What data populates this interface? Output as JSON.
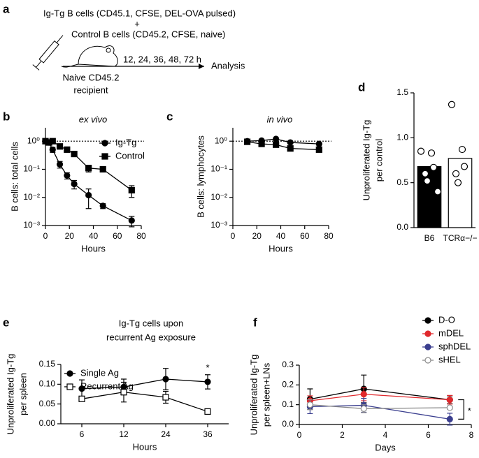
{
  "panel_labels": [
    "a",
    "b",
    "c",
    "d",
    "e",
    "f"
  ],
  "diagram": {
    "line1": "Ig-Tg B cells (CD45.1, CFSE, DEL-OVA pulsed)",
    "plus": "+",
    "line2": "Control B cells (CD45.2, CFSE, naive)",
    "times": "12, 24, 36, 48, 72 h",
    "analysis": "Analysis",
    "recipient1": "Naive CD45.2",
    "recipient2": "recipient"
  },
  "chart_data": [
    {
      "type": "line",
      "title": [
        "ex vivo"
      ],
      "xlabel": "Hours",
      "ylabel": [
        "B cells: total cells"
      ],
      "log_y": true,
      "x": [
        0,
        3,
        6,
        12,
        18,
        24,
        36,
        48,
        72
      ],
      "xlim": [
        0,
        80
      ],
      "xticks": [
        0,
        20,
        40,
        60,
        80
      ],
      "ylim": [
        0.001,
        3
      ],
      "yticks": [
        {
          "value": 1,
          "label": "10⁰"
        },
        {
          "value": 0.1,
          "label": "10⁻¹"
        },
        {
          "value": 0.01,
          "label": "10⁻²"
        },
        {
          "value": 0.001,
          "label": "10⁻³"
        }
      ],
      "reference_line": 1,
      "legend": "upper right",
      "series": [
        {
          "name": "Ig-Tg",
          "color": "#000000",
          "marker": "circle",
          "open": false,
          "values": [
            1.0,
            0.9,
            0.5,
            0.15,
            0.06,
            0.03,
            0.012,
            0.005,
            0.0015
          ],
          "errors": [
            0,
            0,
            0.1,
            0.04,
            0.015,
            0.01,
            0.008,
            0.001,
            0.0006
          ]
        },
        {
          "name": "Control",
          "color": "#000000",
          "marker": "square",
          "open": false,
          "values": [
            1.0,
            0.9,
            1.0,
            0.65,
            0.5,
            0.35,
            0.11,
            0.1,
            0.018
          ],
          "errors": [
            0,
            0,
            0.1,
            0.1,
            0.08,
            0.05,
            0.03,
            0.02,
            0.008
          ]
        }
      ]
    },
    {
      "type": "line",
      "title": [
        "in vivo"
      ],
      "xlabel": "Hours",
      "ylabel": [
        "B cells: lymphocytes"
      ],
      "log_y": true,
      "x": [
        12,
        24,
        36,
        48,
        72
      ],
      "xlim": [
        0,
        80
      ],
      "xticks": [
        0,
        20,
        40,
        60,
        80
      ],
      "ylim": [
        0.001,
        3
      ],
      "yticks": [
        {
          "value": 1,
          "label": "10⁰"
        },
        {
          "value": 0.1,
          "label": "10⁻¹"
        },
        {
          "value": 0.01,
          "label": "10⁻²"
        },
        {
          "value": 0.001,
          "label": "10⁻³"
        }
      ],
      "reference_line": 1,
      "series": [
        {
          "color": "#000000",
          "marker": "circle",
          "open": false,
          "values": [
            1.0,
            1.05,
            1.2,
            0.9,
            0.8
          ]
        },
        {
          "color": "#000000",
          "marker": "square",
          "open": false,
          "values": [
            0.95,
            0.8,
            0.75,
            0.55,
            0.5
          ]
        }
      ]
    },
    {
      "type": "bar",
      "ylabel": [
        "Unproliferated Ig-Tg",
        "per control"
      ],
      "categories": [
        "B6",
        "TCRα−/−"
      ],
      "values": [
        0.68,
        0.77
      ],
      "colors": [
        "#000000",
        "#ffffff"
      ],
      "points": [
        [
          0.85,
          0.83,
          0.67,
          0.6,
          0.52,
          0.4
        ],
        [
          1.37,
          0.87,
          0.68,
          0.6,
          0.5
        ]
      ],
      "ylim": [
        0,
        1.5
      ],
      "yticks": [
        {
          "value": 0,
          "label": "0.0"
        },
        {
          "value": 0.5,
          "label": "0.5"
        },
        {
          "value": 1,
          "label": "1.0"
        },
        1.5
      ]
    },
    {
      "type": "line",
      "title": [
        "Ig-Tg cells upon",
        "recurrent Ag exposure"
      ],
      "xlabel": "Hours",
      "ylabel": [
        "Unproliferated Ig-Tg",
        "per spleen"
      ],
      "categories": [
        "6",
        "12",
        "24",
        "36"
      ],
      "ylim": [
        0,
        0.15
      ],
      "yticks": [
        {
          "value": 0,
          "label": "0.00"
        },
        0.05,
        {
          "value": 0.1,
          "label": "0.10"
        },
        0.15
      ],
      "legend": "upper left",
      "significance": "*",
      "series": [
        {
          "name": "Single Ag",
          "color": "#000000",
          "marker": "circle",
          "open": false,
          "values": [
            0.089,
            0.093,
            0.113,
            0.106
          ],
          "errors": [
            0.022,
            0.02,
            0.027,
            0.018
          ]
        },
        {
          "name": "Recurrent Ag",
          "color": "#000000",
          "marker": "square",
          "open": true,
          "values": [
            0.063,
            0.08,
            0.067,
            0.031
          ],
          "errors": [
            0.005,
            0.025,
            0.015,
            0.004
          ]
        }
      ]
    },
    {
      "type": "line",
      "xlabel": "Days",
      "ylabel": [
        "Unproliferated Ig-Tg",
        "per spleen+LNs"
      ],
      "x": [
        0.5,
        3,
        7
      ],
      "xlim": [
        0,
        8
      ],
      "xticks": [
        0,
        2,
        4,
        6,
        8
      ],
      "ylim": [
        0,
        0.3
      ],
      "yticks": [
        {
          "value": 0,
          "label": "0.0"
        },
        0.1,
        0.2,
        0.3
      ],
      "legend": "upper right",
      "significance": "*",
      "series": [
        {
          "name": "D-O",
          "color": "#000000",
          "marker": "circle",
          "open": false,
          "values": [
            0.128,
            0.18,
            0.125
          ],
          "errors": [
            0.052,
            0.07,
            0.02
          ]
        },
        {
          "name": "mDEL",
          "color": "#e0282c",
          "marker": "circle",
          "open": false,
          "values": [
            0.12,
            0.153,
            0.125
          ],
          "errors": [
            0.025,
            0.033,
            0.022
          ]
        },
        {
          "name": "sphDEL",
          "color": "#3b3f8f",
          "marker": "circle",
          "open": false,
          "values": [
            0.09,
            0.097,
            0.027
          ],
          "errors": [
            0.035,
            0.035,
            0.03
          ]
        },
        {
          "name": "sHEL",
          "color": "#8c8c8c",
          "marker": "circle",
          "open": true,
          "values": [
            0.1,
            0.08,
            0.085
          ],
          "errors": [
            0.025,
            0.02,
            0.008
          ]
        }
      ]
    }
  ]
}
